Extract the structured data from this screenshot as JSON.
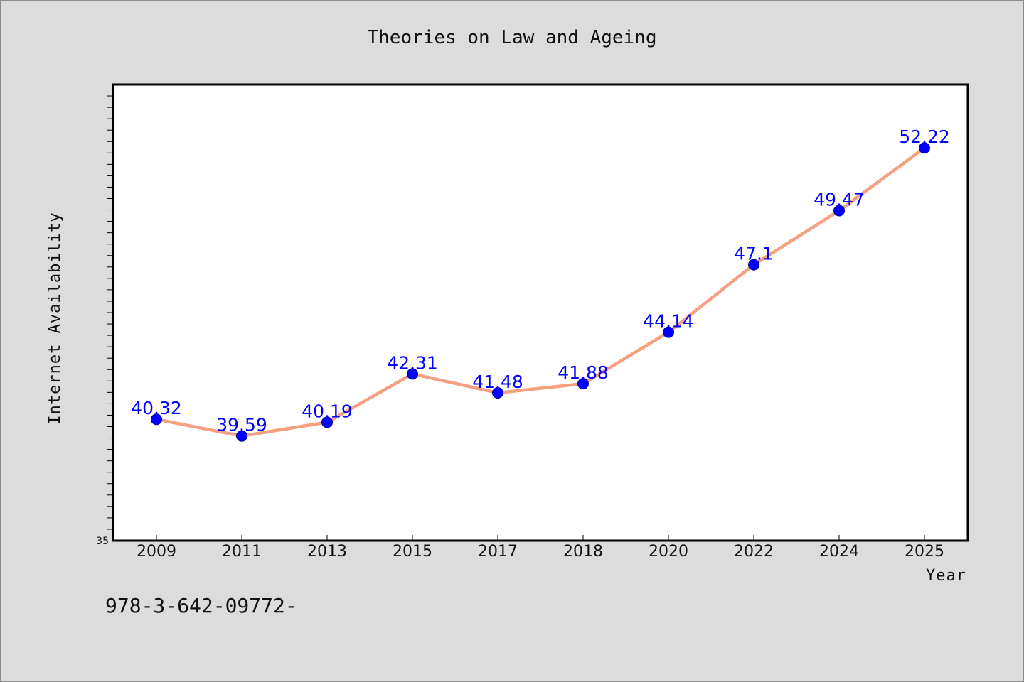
{
  "chart_data": {
    "type": "line",
    "title": "Theories on Law and Ageing",
    "xlabel": "Year",
    "ylabel": "Internet Availability",
    "categories": [
      "2009",
      "2011",
      "2013",
      "2015",
      "2017",
      "2018",
      "2020",
      "2022",
      "2024",
      "2025"
    ],
    "series": [
      {
        "values": [
          40.32,
          39.59,
          40.19,
          42.31,
          41.48,
          41.88,
          44.14,
          47.1,
          49.47,
          52.22
        ],
        "data_labels": [
          "40.32",
          "39.59",
          "40.19",
          "42.31",
          "41.48",
          "41.88",
          "44.14",
          "47.1",
          "49.47",
          "52.22"
        ],
        "line_color": "#f5a080",
        "marker_color": "#0000ff"
      }
    ],
    "ylim": [
      35,
      55
    ],
    "yticks_labeled": [
      "35"
    ],
    "grid": false,
    "legend": "none"
  },
  "footer": {
    "isbn_text": "978-3-642-09772-"
  },
  "colors": {
    "background": "#dcdcdc",
    "plot_area": "#ffffff",
    "line": "#f5a080",
    "marker": "#0000ff",
    "data_label": "#0000ff"
  }
}
